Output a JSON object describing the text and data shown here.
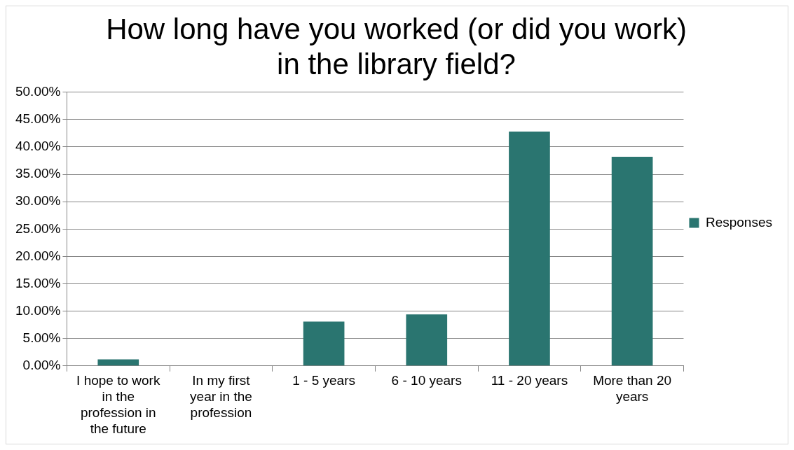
{
  "chart_data": {
    "type": "bar",
    "title": "How long have you worked (or did you work) in the library field?",
    "categories": [
      "I hope to work in the profession in the future",
      "In my first year in the profession",
      "1 - 5 years",
      "6 - 10 years",
      "11 - 20 years",
      "More than 20 years"
    ],
    "series": [
      {
        "name": "Responses",
        "color": "#2a7570",
        "values": [
          1.2,
          0,
          8.1,
          9.4,
          42.8,
          38.2
        ]
      }
    ],
    "ylim": [
      0,
      50
    ],
    "yticks": [
      {
        "value": 0,
        "label": "0.00%"
      },
      {
        "value": 5,
        "label": "5.00%"
      },
      {
        "value": 10,
        "label": "10.00%"
      },
      {
        "value": 15,
        "label": "15.00%"
      },
      {
        "value": 20,
        "label": "20.00%"
      },
      {
        "value": 25,
        "label": "25.00%"
      },
      {
        "value": 30,
        "label": "30.00%"
      },
      {
        "value": 35,
        "label": "35.00%"
      },
      {
        "value": 40,
        "label": "40.00%"
      },
      {
        "value": 45,
        "label": "45.00%"
      },
      {
        "value": 50,
        "label": "50.00%"
      }
    ],
    "grid": "y",
    "legend": "right"
  }
}
